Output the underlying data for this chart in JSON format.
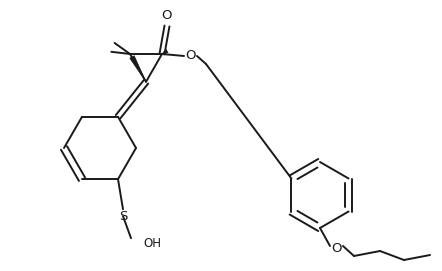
{
  "background_color": "#ffffff",
  "line_color": "#1a1a1a",
  "line_width": 1.4,
  "text_color": "#1a1a1a",
  "font_size": 8.5,
  "figsize": [
    4.42,
    2.71
  ],
  "dpi": 100,
  "OH_label": "OH",
  "S_label": "S",
  "O_label": "O"
}
